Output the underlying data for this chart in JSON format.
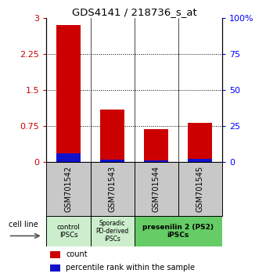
{
  "title": "GDS4141 / 218736_s_at",
  "samples": [
    "GSM701542",
    "GSM701543",
    "GSM701544",
    "GSM701545"
  ],
  "red_values": [
    2.85,
    1.1,
    0.68,
    0.82
  ],
  "blue_values": [
    6.0,
    1.5,
    1.2,
    2.0
  ],
  "ylim_left": [
    0,
    3
  ],
  "ylim_right": [
    0,
    100
  ],
  "yticks_left": [
    0,
    0.75,
    1.5,
    2.25,
    3
  ],
  "yticks_right": [
    0,
    25,
    50,
    75,
    100
  ],
  "ytick_labels_right": [
    "0",
    "25",
    "50",
    "75",
    "100%"
  ],
  "ytick_labels_left": [
    "0",
    "0.75",
    "1.5",
    "2.25",
    "3"
  ],
  "cell_line_label": "cell line",
  "legend_red": "count",
  "legend_blue": "percentile rank within the sample",
  "bar_width": 0.55,
  "red_color": "#cc0000",
  "blue_color": "#1111cc",
  "sample_box_color": "#c8c8c8",
  "group1_color": "#cceecc",
  "group2_color": "#cceecc",
  "group3_color": "#66cc66",
  "dotted_color": "#888888"
}
